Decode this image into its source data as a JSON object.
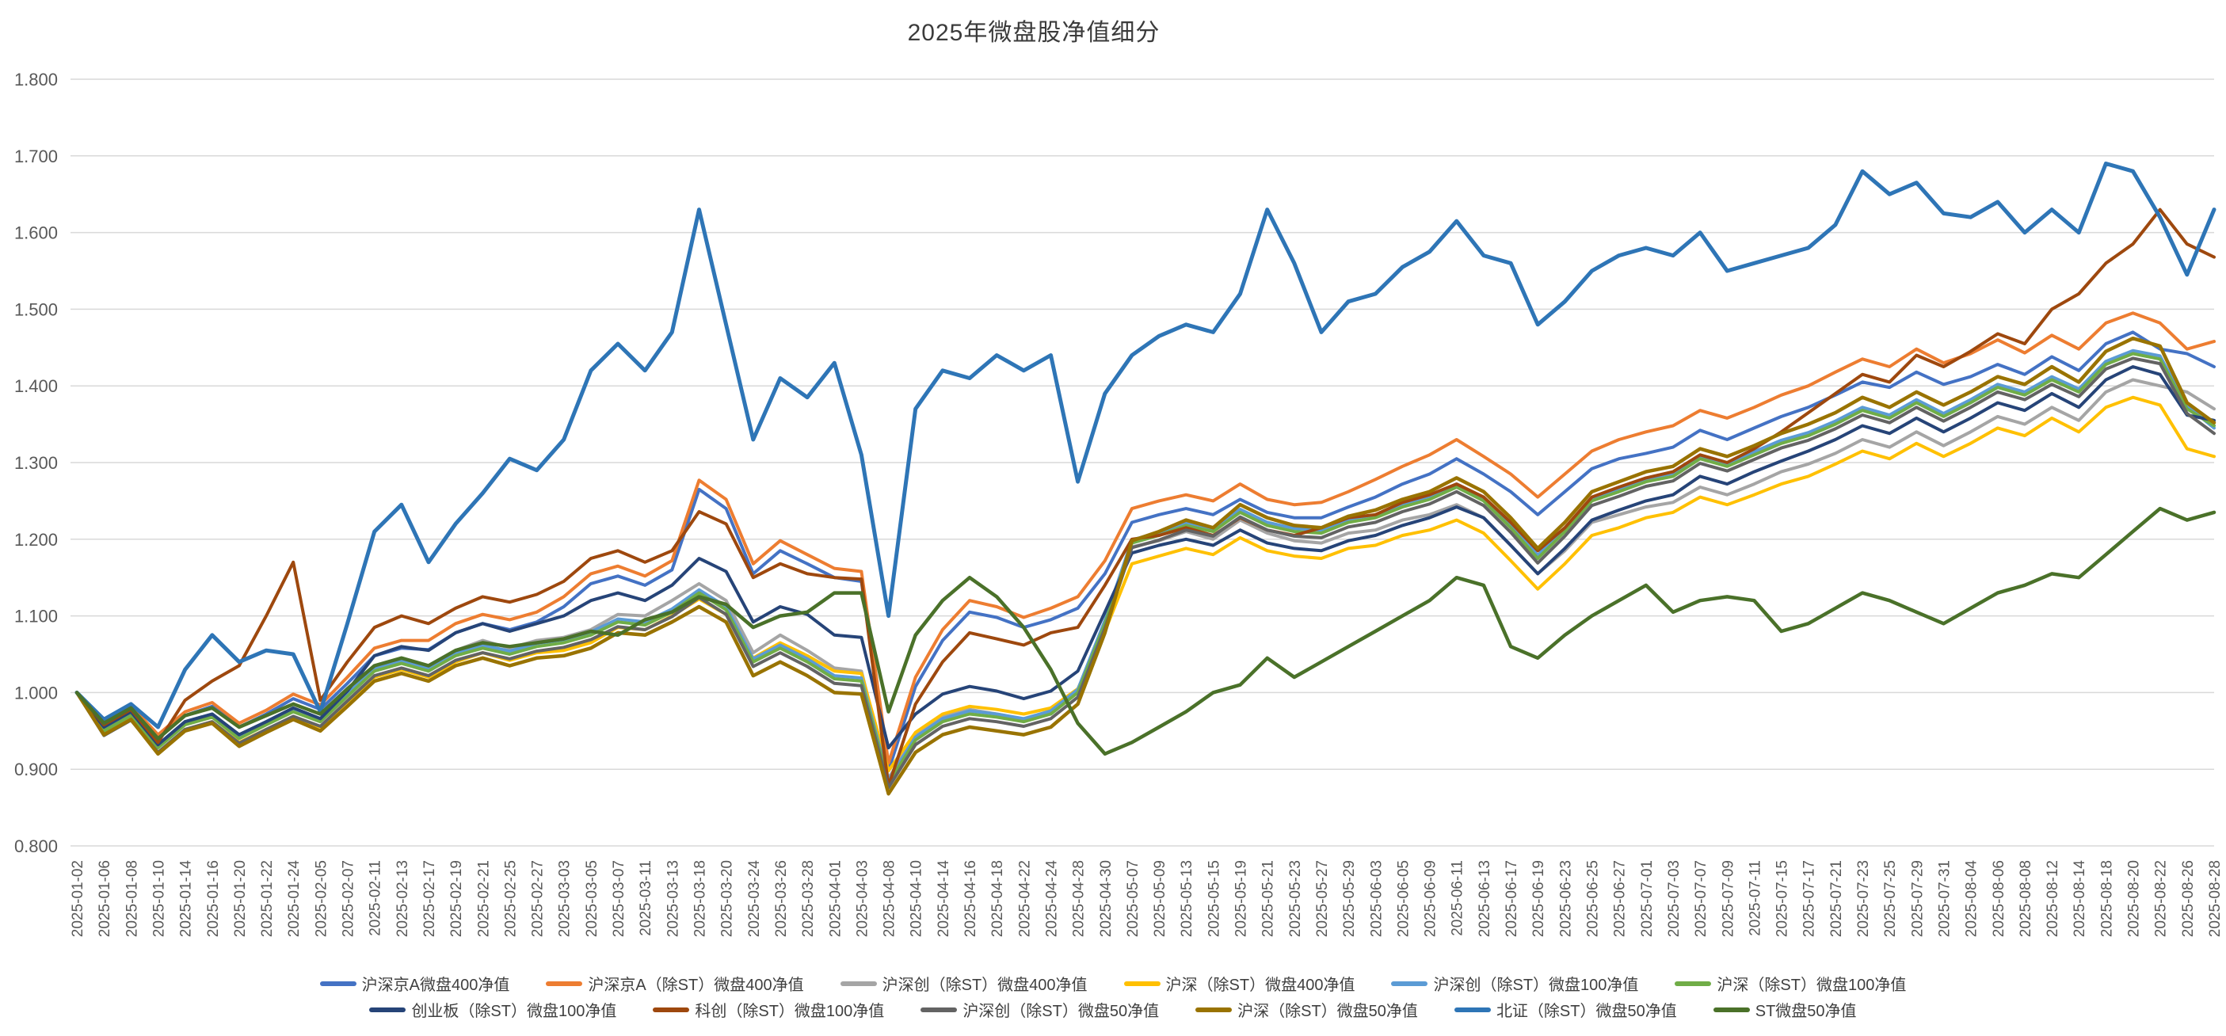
{
  "chart_data": {
    "type": "line",
    "title": "2025年微盘股净值细分",
    "xlabel": "",
    "ylabel": "",
    "ylim": [
      0.8,
      1.8
    ],
    "y_tick_labels": [
      "1.800",
      "1.700",
      "1.600",
      "1.500",
      "1.400",
      "1.300",
      "1.200",
      "1.100",
      "1.000",
      "0.900",
      "0.800"
    ],
    "grid": "horizontal-only",
    "legend_position": "bottom",
    "axis_text_color": "#595959",
    "grid_color": "#D9D9D9",
    "x": [
      "2025-01-02",
      "2025-01-06",
      "2025-01-08",
      "2025-01-10",
      "2025-01-14",
      "2025-01-16",
      "2025-01-20",
      "2025-01-22",
      "2025-01-24",
      "2025-02-05",
      "2025-02-07",
      "2025-02-11",
      "2025-02-13",
      "2025-02-17",
      "2025-02-19",
      "2025-02-21",
      "2025-02-25",
      "2025-02-27",
      "2025-03-03",
      "2025-03-05",
      "2025-03-07",
      "2025-03-11",
      "2025-03-13",
      "2025-03-18",
      "2025-03-20",
      "2025-03-24",
      "2025-03-26",
      "2025-03-28",
      "2025-04-01",
      "2025-04-03",
      "2025-04-08",
      "2025-04-10",
      "2025-04-14",
      "2025-04-16",
      "2025-04-18",
      "2025-04-22",
      "2025-04-24",
      "2025-04-28",
      "2025-04-30",
      "2025-05-07",
      "2025-05-09",
      "2025-05-13",
      "2025-05-15",
      "2025-05-19",
      "2025-05-21",
      "2025-05-23",
      "2025-05-27",
      "2025-05-29",
      "2025-06-03",
      "2025-06-05",
      "2025-06-09",
      "2025-06-11",
      "2025-06-13",
      "2025-06-17",
      "2025-06-19",
      "2025-06-23",
      "2025-06-25",
      "2025-06-27",
      "2025-07-01",
      "2025-07-03",
      "2025-07-07",
      "2025-07-09",
      "2025-07-11",
      "2025-07-15",
      "2025-07-17",
      "2025-07-21",
      "2025-07-23",
      "2025-07-25",
      "2025-07-29",
      "2025-07-31",
      "2025-08-04",
      "2025-08-06",
      "2025-08-08",
      "2025-08-12",
      "2025-08-14",
      "2025-08-18",
      "2025-08-20",
      "2025-08-22",
      "2025-08-26",
      "2025-08-28"
    ],
    "series": [
      {
        "name": "沪深京A微盘400净值",
        "color": "#4472C4",
        "width": 4,
        "values": [
          1.0,
          0.962,
          0.98,
          0.94,
          0.97,
          0.982,
          0.955,
          0.972,
          0.992,
          0.978,
          1.012,
          1.048,
          1.058,
          1.056,
          1.078,
          1.09,
          1.082,
          1.092,
          1.112,
          1.142,
          1.152,
          1.14,
          1.16,
          1.265,
          1.24,
          1.155,
          1.185,
          1.168,
          1.15,
          1.145,
          0.898,
          1.008,
          1.068,
          1.105,
          1.098,
          1.085,
          1.095,
          1.11,
          1.155,
          1.222,
          1.232,
          1.24,
          1.232,
          1.252,
          1.235,
          1.228,
          1.228,
          1.242,
          1.255,
          1.272,
          1.285,
          1.305,
          1.285,
          1.262,
          1.232,
          1.262,
          1.292,
          1.305,
          1.312,
          1.32,
          1.342,
          1.33,
          1.345,
          1.36,
          1.372,
          1.388,
          1.405,
          1.398,
          1.418,
          1.402,
          1.412,
          1.428,
          1.415,
          1.438,
          1.42,
          1.455,
          1.47,
          1.448,
          1.442,
          1.425
        ]
      },
      {
        "name": "沪深京A（除ST）微盘400净值",
        "color": "#ED7D31",
        "width": 4,
        "values": [
          1.0,
          0.965,
          0.983,
          0.945,
          0.975,
          0.987,
          0.96,
          0.977,
          0.998,
          0.984,
          1.02,
          1.058,
          1.068,
          1.068,
          1.09,
          1.102,
          1.095,
          1.105,
          1.125,
          1.155,
          1.165,
          1.152,
          1.172,
          1.277,
          1.252,
          1.168,
          1.198,
          1.18,
          1.162,
          1.158,
          0.908,
          1.02,
          1.082,
          1.12,
          1.112,
          1.098,
          1.11,
          1.125,
          1.172,
          1.24,
          1.25,
          1.258,
          1.25,
          1.272,
          1.252,
          1.245,
          1.248,
          1.262,
          1.278,
          1.295,
          1.31,
          1.33,
          1.308,
          1.285,
          1.255,
          1.285,
          1.315,
          1.33,
          1.34,
          1.348,
          1.368,
          1.358,
          1.372,
          1.388,
          1.4,
          1.418,
          1.435,
          1.425,
          1.448,
          1.43,
          1.442,
          1.46,
          1.443,
          1.466,
          1.448,
          1.482,
          1.495,
          1.482,
          1.448,
          1.458
        ]
      },
      {
        "name": "沪深创（除ST）微盘400净值",
        "color": "#A5A5A5",
        "width": 4,
        "values": [
          1.0,
          0.952,
          0.972,
          0.932,
          0.962,
          0.972,
          0.945,
          0.962,
          0.98,
          0.966,
          1.0,
          1.035,
          1.045,
          1.035,
          1.055,
          1.068,
          1.058,
          1.068,
          1.072,
          1.082,
          1.102,
          1.1,
          1.12,
          1.142,
          1.12,
          1.052,
          1.075,
          1.055,
          1.032,
          1.028,
          0.888,
          0.945,
          0.968,
          0.978,
          0.972,
          0.965,
          0.975,
          1.002,
          1.088,
          1.19,
          1.198,
          1.21,
          1.2,
          1.225,
          1.208,
          1.198,
          1.195,
          1.208,
          1.212,
          1.225,
          1.232,
          1.245,
          1.228,
          1.192,
          1.155,
          1.185,
          1.222,
          1.232,
          1.242,
          1.248,
          1.268,
          1.258,
          1.272,
          1.288,
          1.298,
          1.312,
          1.33,
          1.32,
          1.34,
          1.322,
          1.34,
          1.36,
          1.35,
          1.372,
          1.355,
          1.392,
          1.408,
          1.4,
          1.392,
          1.37
        ]
      },
      {
        "name": "沪深（除ST）微盘400净值",
        "color": "#FFC000",
        "width": 4,
        "values": [
          1.0,
          0.948,
          0.968,
          0.922,
          0.952,
          0.962,
          0.935,
          0.952,
          0.968,
          0.955,
          0.988,
          1.02,
          1.03,
          1.02,
          1.04,
          1.052,
          1.042,
          1.052,
          1.055,
          1.065,
          1.085,
          1.082,
          1.1,
          1.122,
          1.102,
          1.045,
          1.065,
          1.048,
          1.028,
          1.025,
          0.898,
          0.948,
          0.972,
          0.982,
          0.978,
          0.972,
          0.98,
          1.005,
          1.08,
          1.168,
          1.178,
          1.188,
          1.18,
          1.202,
          1.185,
          1.178,
          1.175,
          1.188,
          1.192,
          1.205,
          1.212,
          1.225,
          1.208,
          1.172,
          1.135,
          1.168,
          1.205,
          1.215,
          1.228,
          1.235,
          1.255,
          1.245,
          1.258,
          1.272,
          1.282,
          1.298,
          1.315,
          1.305,
          1.325,
          1.308,
          1.325,
          1.345,
          1.335,
          1.358,
          1.34,
          1.372,
          1.385,
          1.375,
          1.318,
          1.308
        ]
      },
      {
        "name": "沪深创（除ST）微盘100净值",
        "color": "#5B9BD5",
        "width": 4,
        "values": [
          1.0,
          0.954,
          0.974,
          0.932,
          0.962,
          0.972,
          0.944,
          0.962,
          0.979,
          0.966,
          0.999,
          1.032,
          1.042,
          1.032,
          1.052,
          1.062,
          1.054,
          1.064,
          1.069,
          1.079,
          1.096,
          1.092,
          1.109,
          1.134,
          1.112,
          1.044,
          1.062,
          1.044,
          1.022,
          1.019,
          0.886,
          0.942,
          0.966,
          0.976,
          0.972,
          0.966,
          0.976,
          1.004,
          1.094,
          1.199,
          1.209,
          1.222,
          1.214,
          1.239,
          1.222,
          1.214,
          1.212,
          1.226,
          1.232,
          1.246,
          1.256,
          1.272,
          1.254,
          1.219,
          1.179,
          1.214,
          1.254,
          1.266,
          1.279,
          1.286,
          1.309,
          1.299,
          1.314,
          1.329,
          1.339,
          1.354,
          1.372,
          1.362,
          1.382,
          1.364,
          1.382,
          1.402,
          1.392,
          1.412,
          1.396,
          1.432,
          1.446,
          1.439,
          1.374,
          1.345
        ]
      },
      {
        "name": "沪深（除ST）微盘100净值",
        "color": "#70AD47",
        "width": 4,
        "values": [
          1.0,
          0.95,
          0.97,
          0.928,
          0.958,
          0.968,
          0.94,
          0.958,
          0.975,
          0.962,
          0.995,
          1.028,
          1.038,
          1.028,
          1.048,
          1.058,
          1.05,
          1.06,
          1.065,
          1.075,
          1.092,
          1.088,
          1.105,
          1.13,
          1.108,
          1.04,
          1.058,
          1.04,
          1.018,
          1.015,
          0.882,
          0.938,
          0.962,
          0.972,
          0.968,
          0.962,
          0.972,
          1.0,
          1.09,
          1.195,
          1.205,
          1.218,
          1.21,
          1.235,
          1.218,
          1.21,
          1.208,
          1.222,
          1.228,
          1.242,
          1.252,
          1.268,
          1.25,
          1.215,
          1.175,
          1.21,
          1.25,
          1.262,
          1.275,
          1.282,
          1.305,
          1.295,
          1.31,
          1.325,
          1.335,
          1.35,
          1.368,
          1.358,
          1.378,
          1.36,
          1.378,
          1.398,
          1.388,
          1.408,
          1.392,
          1.428,
          1.442,
          1.435,
          1.37,
          1.348
        ]
      },
      {
        "name": "创业板（除ST）微盘100净值",
        "color": "#264478",
        "width": 4,
        "values": [
          1.0,
          0.955,
          0.975,
          0.932,
          0.962,
          0.972,
          0.945,
          0.962,
          0.98,
          0.966,
          1.002,
          1.048,
          1.06,
          1.055,
          1.078,
          1.09,
          1.08,
          1.09,
          1.1,
          1.12,
          1.13,
          1.12,
          1.14,
          1.175,
          1.158,
          1.092,
          1.112,
          1.102,
          1.075,
          1.072,
          0.928,
          0.972,
          0.998,
          1.008,
          1.002,
          0.992,
          1.002,
          1.028,
          1.105,
          1.182,
          1.192,
          1.2,
          1.192,
          1.212,
          1.195,
          1.188,
          1.185,
          1.198,
          1.205,
          1.218,
          1.228,
          1.242,
          1.228,
          1.192,
          1.155,
          1.188,
          1.225,
          1.238,
          1.25,
          1.258,
          1.282,
          1.272,
          1.288,
          1.302,
          1.315,
          1.33,
          1.348,
          1.338,
          1.358,
          1.34,
          1.358,
          1.378,
          1.368,
          1.39,
          1.372,
          1.408,
          1.425,
          1.415,
          1.362,
          1.355
        ]
      },
      {
        "name": "科创（除ST）微盘100净值",
        "color": "#9E480E",
        "width": 4,
        "values": [
          1.0,
          0.958,
          0.978,
          0.935,
          0.99,
          1.015,
          1.035,
          1.1,
          1.17,
          0.99,
          1.04,
          1.085,
          1.1,
          1.09,
          1.11,
          1.125,
          1.118,
          1.128,
          1.145,
          1.175,
          1.185,
          1.17,
          1.185,
          1.236,
          1.22,
          1.15,
          1.168,
          1.155,
          1.15,
          1.148,
          0.878,
          0.985,
          1.04,
          1.078,
          1.07,
          1.062,
          1.078,
          1.085,
          1.14,
          1.2,
          1.205,
          1.215,
          1.205,
          1.228,
          1.212,
          1.205,
          1.215,
          1.228,
          1.232,
          1.248,
          1.258,
          1.272,
          1.255,
          1.222,
          1.185,
          1.215,
          1.255,
          1.268,
          1.28,
          1.288,
          1.31,
          1.3,
          1.318,
          1.34,
          1.365,
          1.39,
          1.415,
          1.405,
          1.44,
          1.425,
          1.445,
          1.468,
          1.455,
          1.5,
          1.52,
          1.56,
          1.585,
          1.63,
          1.585,
          1.568
        ]
      },
      {
        "name": "沪深创（除ST）微盘50净值",
        "color": "#636363",
        "width": 4,
        "values": [
          1.0,
          0.944,
          0.964,
          0.922,
          0.952,
          0.962,
          0.934,
          0.952,
          0.969,
          0.956,
          0.989,
          1.022,
          1.032,
          1.022,
          1.042,
          1.052,
          1.044,
          1.054,
          1.059,
          1.069,
          1.086,
          1.082,
          1.099,
          1.124,
          1.102,
          1.034,
          1.052,
          1.034,
          1.012,
          1.009,
          0.876,
          0.932,
          0.956,
          0.966,
          0.962,
          0.956,
          0.966,
          0.994,
          1.084,
          1.189,
          1.199,
          1.212,
          1.204,
          1.229,
          1.212,
          1.204,
          1.202,
          1.216,
          1.222,
          1.236,
          1.246,
          1.262,
          1.244,
          1.209,
          1.169,
          1.204,
          1.244,
          1.256,
          1.269,
          1.276,
          1.299,
          1.289,
          1.304,
          1.319,
          1.329,
          1.344,
          1.362,
          1.352,
          1.372,
          1.354,
          1.372,
          1.392,
          1.382,
          1.402,
          1.386,
          1.422,
          1.436,
          1.429,
          1.364,
          1.338
        ]
      },
      {
        "name": "沪深（除ST）微盘50净值",
        "color": "#997300",
        "width": 4.5,
        "values": [
          1.0,
          0.945,
          0.965,
          0.92,
          0.95,
          0.96,
          0.93,
          0.948,
          0.965,
          0.95,
          0.982,
          1.015,
          1.025,
          1.015,
          1.035,
          1.045,
          1.035,
          1.045,
          1.048,
          1.058,
          1.078,
          1.075,
          1.092,
          1.112,
          1.092,
          1.022,
          1.04,
          1.022,
          1.0,
          0.998,
          0.868,
          0.922,
          0.945,
          0.955,
          0.95,
          0.945,
          0.955,
          0.985,
          1.078,
          1.198,
          1.21,
          1.225,
          1.215,
          1.245,
          1.228,
          1.218,
          1.215,
          1.23,
          1.238,
          1.252,
          1.262,
          1.28,
          1.262,
          1.228,
          1.188,
          1.222,
          1.262,
          1.275,
          1.288,
          1.295,
          1.318,
          1.308,
          1.322,
          1.338,
          1.35,
          1.365,
          1.385,
          1.372,
          1.392,
          1.375,
          1.392,
          1.412,
          1.402,
          1.425,
          1.405,
          1.445,
          1.462,
          1.452,
          1.378,
          1.352
        ]
      },
      {
        "name": "北证（除ST）微盘50净值",
        "color": "#2E75B6",
        "width": 5,
        "values": [
          1.0,
          0.965,
          0.985,
          0.955,
          1.03,
          1.075,
          1.04,
          1.055,
          1.05,
          0.975,
          1.09,
          1.21,
          1.245,
          1.17,
          1.22,
          1.26,
          1.305,
          1.29,
          1.33,
          1.42,
          1.455,
          1.42,
          1.47,
          1.63,
          1.48,
          1.33,
          1.41,
          1.385,
          1.43,
          1.31,
          1.1,
          1.37,
          1.42,
          1.41,
          1.44,
          1.42,
          1.44,
          1.275,
          1.39,
          1.44,
          1.465,
          1.48,
          1.47,
          1.52,
          1.63,
          1.56,
          1.47,
          1.51,
          1.52,
          1.555,
          1.575,
          1.615,
          1.57,
          1.56,
          1.48,
          1.51,
          1.55,
          1.57,
          1.58,
          1.57,
          1.6,
          1.55,
          1.56,
          1.57,
          1.58,
          1.61,
          1.68,
          1.65,
          1.665,
          1.625,
          1.62,
          1.64,
          1.6,
          1.63,
          1.6,
          1.69,
          1.68,
          1.62,
          1.545,
          1.63
        ]
      },
      {
        "name": "ST微盘50净值",
        "color": "#4A7129",
        "width": 4.5,
        "values": [
          1.0,
          0.96,
          0.98,
          0.94,
          0.97,
          0.98,
          0.955,
          0.97,
          0.985,
          0.972,
          1.005,
          1.035,
          1.045,
          1.035,
          1.055,
          1.065,
          1.06,
          1.065,
          1.07,
          1.08,
          1.075,
          1.095,
          1.105,
          1.125,
          1.115,
          1.085,
          1.1,
          1.105,
          1.13,
          1.13,
          0.975,
          1.075,
          1.12,
          1.15,
          1.125,
          1.085,
          1.03,
          0.96,
          0.92,
          0.935,
          0.955,
          0.975,
          1.0,
          1.01,
          1.045,
          1.02,
          1.04,
          1.06,
          1.08,
          1.1,
          1.12,
          1.15,
          1.14,
          1.06,
          1.045,
          1.075,
          1.1,
          1.12,
          1.14,
          1.105,
          1.12,
          1.125,
          1.12,
          1.08,
          1.09,
          1.11,
          1.13,
          1.12,
          1.105,
          1.09,
          1.11,
          1.13,
          1.14,
          1.155,
          1.15,
          1.18,
          1.21,
          1.24,
          1.225,
          1.235
        ]
      }
    ]
  }
}
